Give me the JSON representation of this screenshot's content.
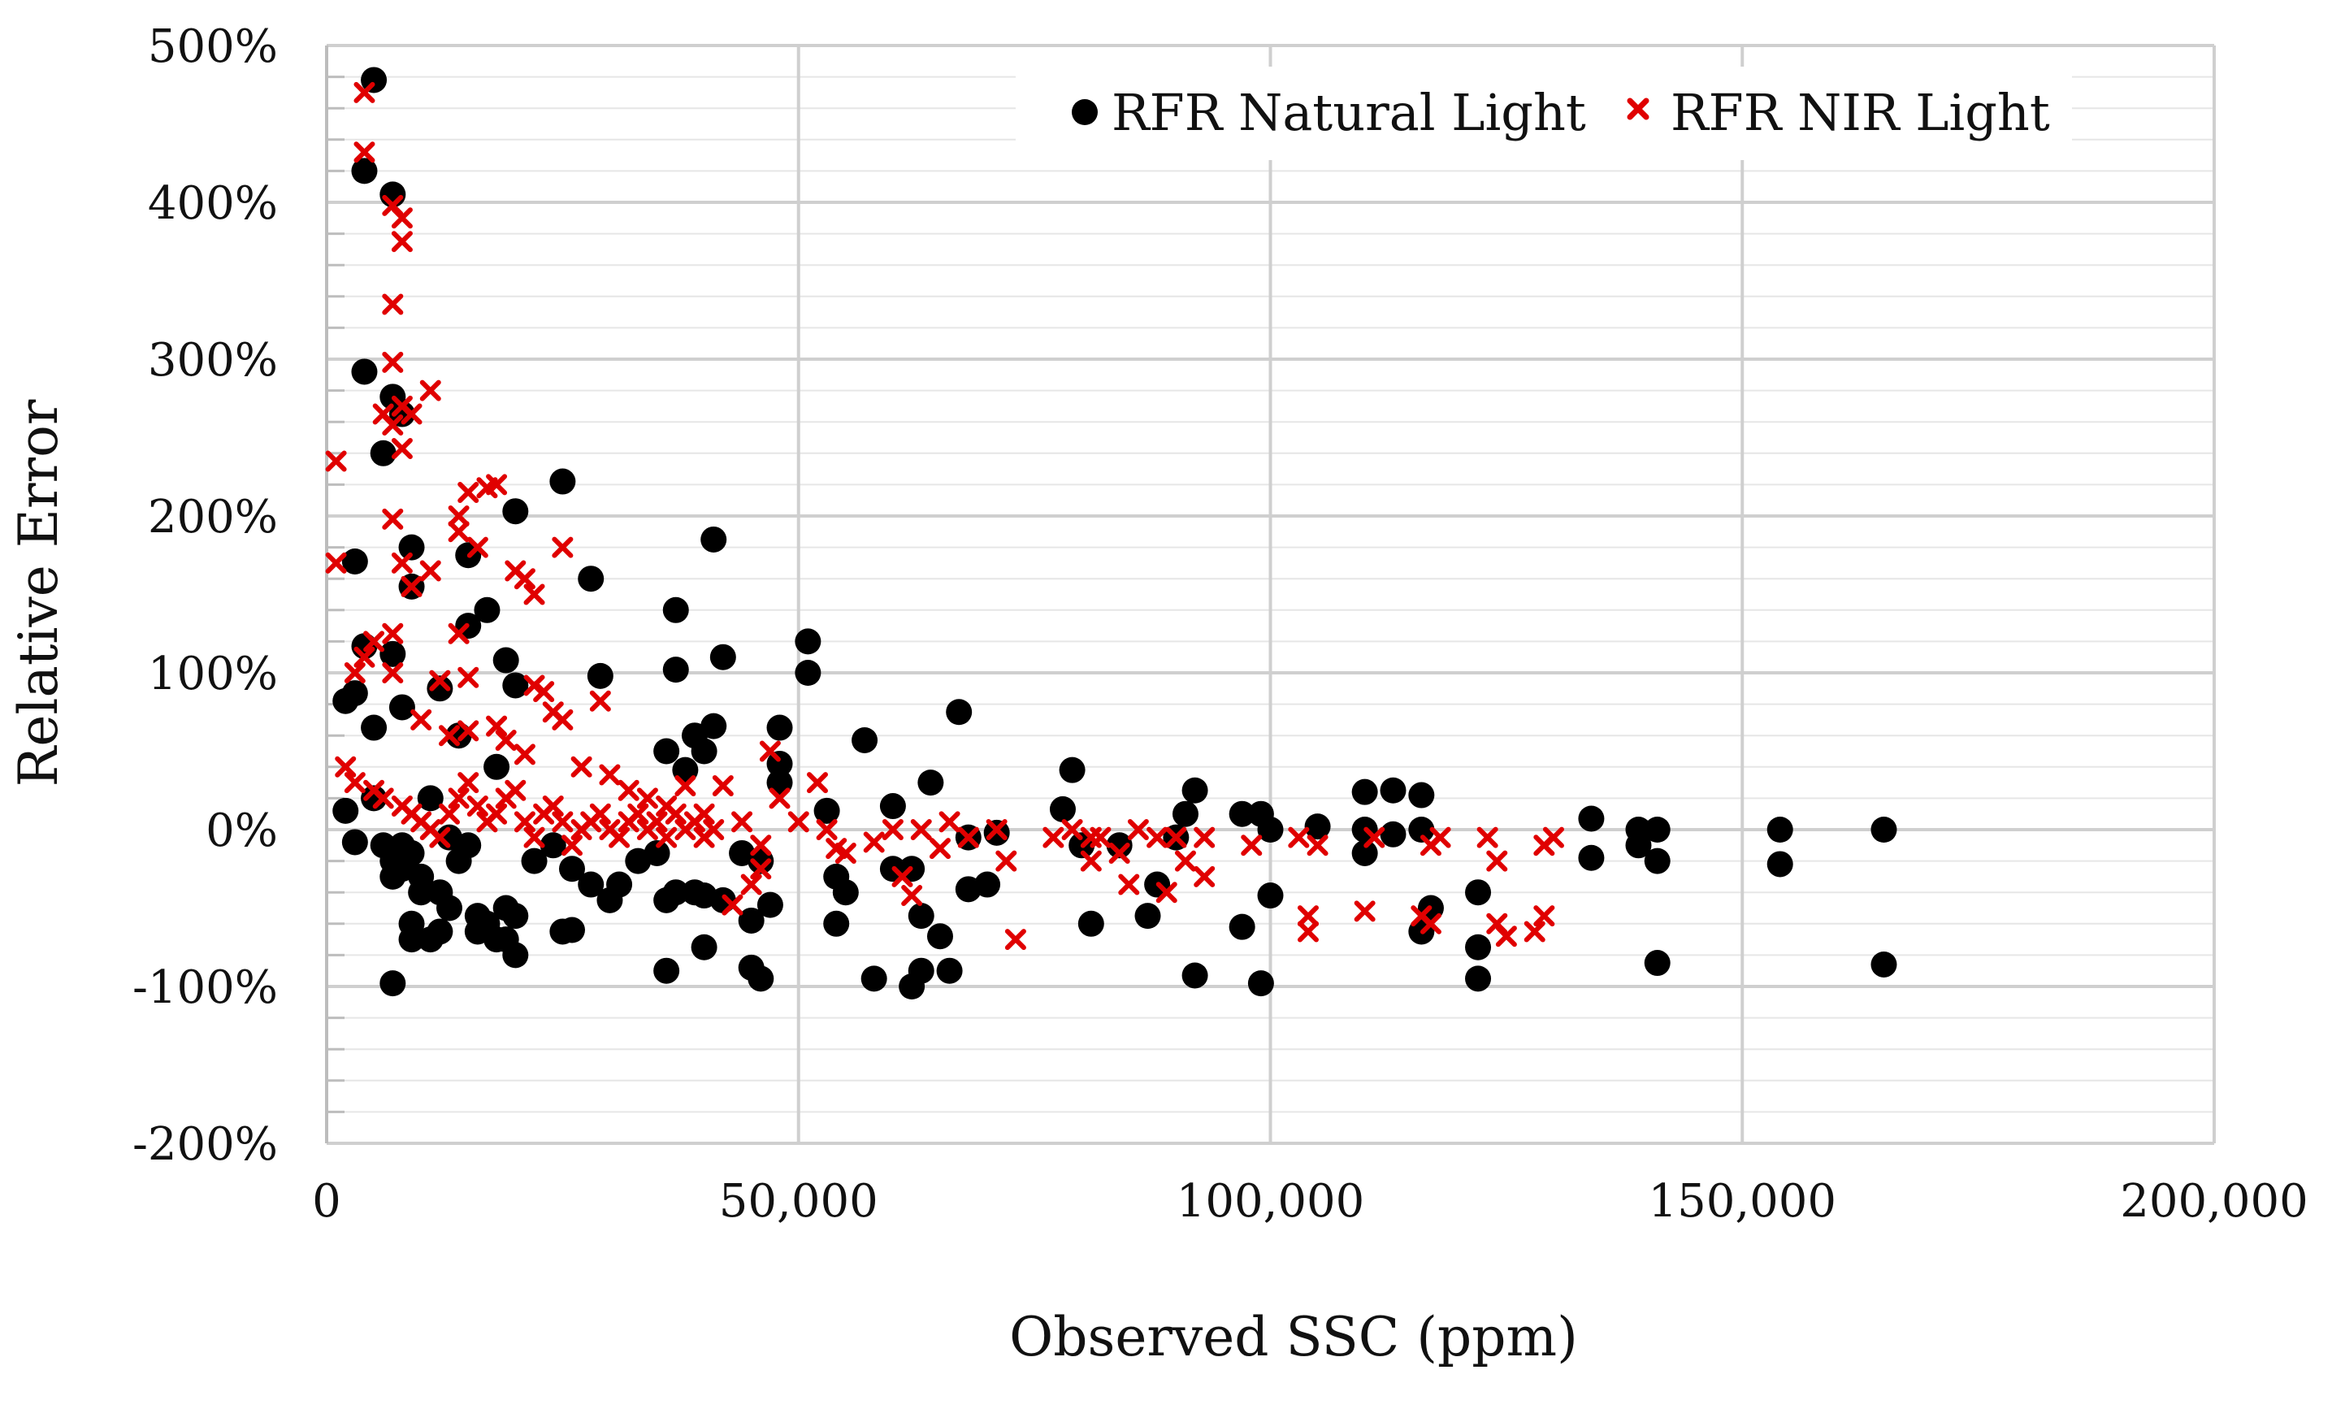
{
  "chart_data": {
    "type": "scatter",
    "title": "",
    "xlabel": "Observed SSC (ppm)",
    "ylabel": "Relative Error",
    "xlim": [
      0,
      200000
    ],
    "ylim": [
      -200,
      500
    ],
    "x_ticks": [
      0,
      50000,
      100000,
      150000,
      200000
    ],
    "x_tick_labels": [
      "0",
      "50,000",
      "100,000",
      "150,000",
      "200,000"
    ],
    "y_ticks": [
      -200,
      -100,
      0,
      100,
      200,
      300,
      400,
      500
    ],
    "y_tick_labels": [
      "-200%",
      "-100%",
      "0%",
      "100%",
      "200%",
      "300%",
      "400%",
      "500%"
    ],
    "grid": true,
    "legend_position": "top-right",
    "series": [
      {
        "name": "RFR Natural Light",
        "marker": "circle",
        "color": "#000000",
        "points": [
          [
            5000,
            478
          ],
          [
            4000,
            420
          ],
          [
            7000,
            405
          ],
          [
            4000,
            292
          ],
          [
            7000,
            276
          ],
          [
            6000,
            240
          ],
          [
            8000,
            265
          ],
          [
            3000,
            171
          ],
          [
            9000,
            180
          ],
          [
            9000,
            155
          ],
          [
            4000,
            117
          ],
          [
            7000,
            112
          ],
          [
            2000,
            82
          ],
          [
            3000,
            87
          ],
          [
            5000,
            65
          ],
          [
            8000,
            78
          ],
          [
            2000,
            12
          ],
          [
            3000,
            -8
          ],
          [
            5000,
            20
          ],
          [
            6000,
            -10
          ],
          [
            7000,
            -20
          ],
          [
            7000,
            -30
          ],
          [
            8000,
            -25
          ],
          [
            9000,
            -15
          ],
          [
            10000,
            -30
          ],
          [
            10000,
            -40
          ],
          [
            9000,
            -60
          ],
          [
            9000,
            -70
          ],
          [
            11000,
            -70
          ],
          [
            12000,
            -65
          ],
          [
            12000,
            -40
          ],
          [
            13000,
            -50
          ],
          [
            14000,
            -20
          ],
          [
            15000,
            -10
          ],
          [
            16000,
            -55
          ],
          [
            16000,
            -65
          ],
          [
            17000,
            -60
          ],
          [
            18000,
            -70
          ],
          [
            19000,
            -50
          ],
          [
            19000,
            -70
          ],
          [
            20000,
            -55
          ],
          [
            20000,
            -80
          ],
          [
            7000,
            -98
          ],
          [
            15000,
            175
          ],
          [
            17000,
            140
          ],
          [
            19000,
            108
          ],
          [
            20000,
            203
          ],
          [
            20000,
            92
          ],
          [
            25000,
            222
          ],
          [
            28000,
            160
          ],
          [
            29000,
            98
          ],
          [
            37000,
            140
          ],
          [
            37000,
            102
          ],
          [
            41000,
            185
          ],
          [
            41000,
            66
          ],
          [
            42000,
            110
          ],
          [
            39000,
            60
          ],
          [
            40000,
            50
          ],
          [
            36000,
            50
          ],
          [
            38000,
            38
          ],
          [
            36000,
            -45
          ],
          [
            37000,
            -40
          ],
          [
            39000,
            -40
          ],
          [
            40000,
            -42
          ],
          [
            42000,
            -45
          ],
          [
            40000,
            -75
          ],
          [
            36000,
            -90
          ],
          [
            45000,
            -88
          ],
          [
            46000,
            -95
          ],
          [
            47000,
            -48
          ],
          [
            51000,
            120
          ],
          [
            51000,
            100
          ],
          [
            48000,
            65
          ],
          [
            48000,
            42
          ],
          [
            48000,
            30
          ],
          [
            46000,
            -20
          ],
          [
            45000,
            -58
          ],
          [
            53000,
            12
          ],
          [
            55000,
            -40
          ],
          [
            54000,
            -60
          ],
          [
            57000,
            57
          ],
          [
            54000,
            -30
          ],
          [
            58000,
            -95
          ],
          [
            60000,
            15
          ],
          [
            60000,
            -25
          ],
          [
            62000,
            -100
          ],
          [
            63000,
            -90
          ],
          [
            62000,
            -25
          ],
          [
            63000,
            -55
          ],
          [
            64000,
            30
          ],
          [
            65000,
            -68
          ],
          [
            66000,
            -90
          ],
          [
            67000,
            75
          ],
          [
            68000,
            -5
          ],
          [
            68000,
            -38
          ],
          [
            70000,
            -35
          ],
          [
            71000,
            -2
          ],
          [
            78000,
            13
          ],
          [
            79000,
            38
          ],
          [
            81000,
            -60
          ],
          [
            80000,
            -10
          ],
          [
            84000,
            -10
          ],
          [
            87000,
            -55
          ],
          [
            88000,
            -35
          ],
          [
            90000,
            -5
          ],
          [
            91000,
            10
          ],
          [
            92000,
            25
          ],
          [
            92000,
            -93
          ],
          [
            97000,
            10
          ],
          [
            97000,
            -62
          ],
          [
            99000,
            10
          ],
          [
            99000,
            -98
          ],
          [
            100000,
            -42
          ],
          [
            100000,
            0
          ],
          [
            105000,
            2
          ],
          [
            110000,
            24
          ],
          [
            110000,
            -15
          ],
          [
            110000,
            0
          ],
          [
            113000,
            25
          ],
          [
            113000,
            -3
          ],
          [
            116000,
            22
          ],
          [
            116000,
            0
          ],
          [
            116000,
            -65
          ],
          [
            117000,
            -50
          ],
          [
            122000,
            -95
          ],
          [
            122000,
            -40
          ],
          [
            122000,
            -75
          ],
          [
            134000,
            7
          ],
          [
            134000,
            -18
          ],
          [
            139000,
            0
          ],
          [
            139000,
            -10
          ],
          [
            141000,
            0
          ],
          [
            141000,
            -20
          ],
          [
            141000,
            -85
          ],
          [
            154000,
            0
          ],
          [
            154000,
            -22
          ],
          [
            165000,
            0
          ],
          [
            165000,
            -86
          ],
          [
            14000,
            60
          ],
          [
            12000,
            90
          ],
          [
            18000,
            40
          ],
          [
            22000,
            -20
          ],
          [
            25000,
            -65
          ],
          [
            26000,
            -25
          ],
          [
            24000,
            -10
          ],
          [
            30000,
            -45
          ],
          [
            33000,
            -20
          ],
          [
            35000,
            -15
          ],
          [
            31000,
            -35
          ],
          [
            44000,
            -15
          ],
          [
            26000,
            -64
          ],
          [
            28000,
            -35
          ],
          [
            15000,
            130
          ],
          [
            8000,
            -10
          ],
          [
            11000,
            20
          ],
          [
            13000,
            -5
          ]
        ]
      },
      {
        "name": "RFR NIR Light",
        "marker": "x",
        "color": "#e00000",
        "points": [
          [
            4000,
            470
          ],
          [
            4000,
            432
          ],
          [
            7000,
            398
          ],
          [
            8000,
            390
          ],
          [
            8000,
            375
          ],
          [
            7000,
            335
          ],
          [
            7000,
            298
          ],
          [
            6000,
            265
          ],
          [
            8000,
            270
          ],
          [
            9000,
            265
          ],
          [
            7000,
            258
          ],
          [
            8000,
            243
          ],
          [
            11000,
            280
          ],
          [
            1000,
            235
          ],
          [
            1000,
            170
          ],
          [
            7000,
            198
          ],
          [
            8000,
            170
          ],
          [
            9000,
            155
          ],
          [
            11000,
            165
          ],
          [
            14000,
            200
          ],
          [
            14000,
            190
          ],
          [
            16000,
            180
          ],
          [
            15000,
            215
          ],
          [
            17000,
            218
          ],
          [
            18000,
            220
          ],
          [
            20000,
            165
          ],
          [
            21000,
            160
          ],
          [
            22000,
            150
          ],
          [
            25000,
            180
          ],
          [
            14000,
            125
          ],
          [
            15000,
            97
          ],
          [
            12000,
            95
          ],
          [
            7000,
            125
          ],
          [
            5000,
            120
          ],
          [
            4000,
            110
          ],
          [
            3000,
            100
          ],
          [
            7000,
            100
          ],
          [
            10000,
            70
          ],
          [
            13000,
            60
          ],
          [
            15000,
            63
          ],
          [
            18000,
            66
          ],
          [
            19000,
            57
          ],
          [
            21000,
            48
          ],
          [
            22000,
            92
          ],
          [
            23000,
            88
          ],
          [
            24000,
            75
          ],
          [
            25000,
            70
          ],
          [
            29000,
            82
          ],
          [
            27000,
            40
          ],
          [
            30000,
            35
          ],
          [
            32000,
            25
          ],
          [
            34000,
            20
          ],
          [
            36000,
            15
          ],
          [
            38000,
            28
          ],
          [
            40000,
            10
          ],
          [
            42000,
            28
          ],
          [
            44000,
            5
          ],
          [
            46000,
            -10
          ],
          [
            45000,
            -35
          ],
          [
            47000,
            50
          ],
          [
            48000,
            20
          ],
          [
            50000,
            5
          ],
          [
            52000,
            30
          ],
          [
            53000,
            0
          ],
          [
            55000,
            -15
          ],
          [
            58000,
            -8
          ],
          [
            60000,
            0
          ],
          [
            61000,
            -30
          ],
          [
            62000,
            -42
          ],
          [
            63000,
            0
          ],
          [
            66000,
            5
          ],
          [
            68000,
            -5
          ],
          [
            71000,
            0
          ],
          [
            72000,
            -20
          ],
          [
            73000,
            -70
          ],
          [
            77000,
            -5
          ],
          [
            79000,
            0
          ],
          [
            81000,
            -5
          ],
          [
            81000,
            -20
          ],
          [
            84000,
            -15
          ],
          [
            85000,
            -35
          ],
          [
            86000,
            0
          ],
          [
            88000,
            -5
          ],
          [
            89000,
            -40
          ],
          [
            90000,
            -5
          ],
          [
            91000,
            -20
          ],
          [
            93000,
            -30
          ],
          [
            93000,
            -5
          ],
          [
            98000,
            -10
          ],
          [
            103000,
            -5
          ],
          [
            104000,
            -55
          ],
          [
            104000,
            -65
          ],
          [
            105000,
            -10
          ],
          [
            110000,
            -52
          ],
          [
            111000,
            -5
          ],
          [
            116000,
            -55
          ],
          [
            117000,
            -60
          ],
          [
            117000,
            -10
          ],
          [
            118000,
            -5
          ],
          [
            123000,
            -5
          ],
          [
            124000,
            -20
          ],
          [
            124000,
            -60
          ],
          [
            125000,
            -68
          ],
          [
            128000,
            -65
          ],
          [
            129000,
            -55
          ],
          [
            129000,
            -10
          ],
          [
            130000,
            -5
          ],
          [
            2000,
            40
          ],
          [
            3000,
            30
          ],
          [
            5000,
            25
          ],
          [
            6000,
            20
          ],
          [
            8000,
            15
          ],
          [
            9000,
            10
          ],
          [
            10000,
            5
          ],
          [
            11000,
            0
          ],
          [
            12000,
            -5
          ],
          [
            13000,
            10
          ],
          [
            14000,
            20
          ],
          [
            15000,
            30
          ],
          [
            16000,
            15
          ],
          [
            17000,
            5
          ],
          [
            18000,
            10
          ],
          [
            19000,
            20
          ],
          [
            20000,
            25
          ],
          [
            21000,
            5
          ],
          [
            22000,
            -5
          ],
          [
            23000,
            10
          ],
          [
            24000,
            15
          ],
          [
            25000,
            5
          ],
          [
            26000,
            -10
          ],
          [
            27000,
            0
          ],
          [
            28000,
            5
          ],
          [
            29000,
            10
          ],
          [
            30000,
            0
          ],
          [
            31000,
            -5
          ],
          [
            32000,
            5
          ],
          [
            33000,
            10
          ],
          [
            34000,
            0
          ],
          [
            35000,
            5
          ],
          [
            36000,
            -5
          ],
          [
            37000,
            10
          ],
          [
            38000,
            0
          ],
          [
            39000,
            5
          ],
          [
            40000,
            -5
          ],
          [
            41000,
            0
          ],
          [
            43000,
            -48
          ],
          [
            46000,
            -25
          ],
          [
            54000,
            -12
          ],
          [
            65000,
            -12
          ],
          [
            82000,
            -5
          ]
        ]
      }
    ]
  }
}
